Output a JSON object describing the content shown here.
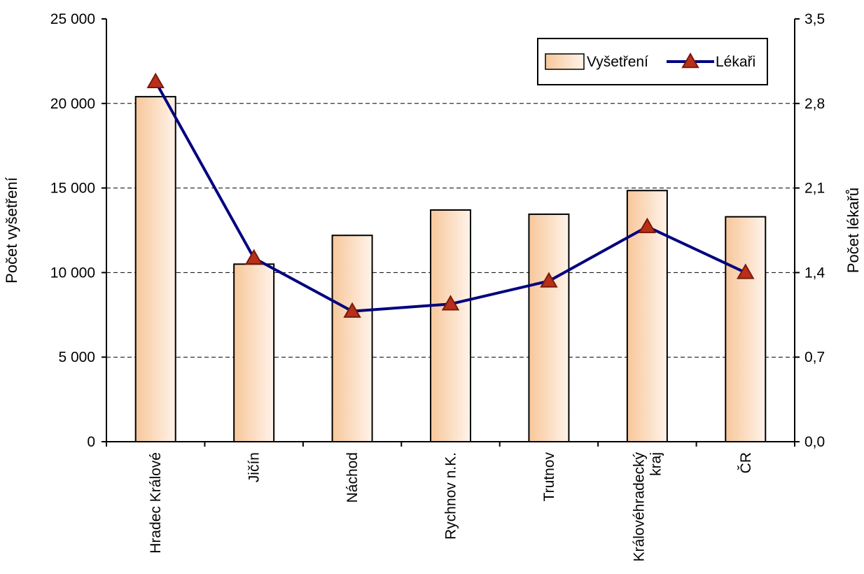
{
  "chart_data": {
    "type": "bar",
    "categories": [
      "Hradec Králové",
      "Jičín",
      "Náchod",
      "Rychnov n.K.",
      "Trutnov",
      "Královéhradecký kraj",
      "ČR"
    ],
    "category_lines": [
      [
        "Hradec Králové"
      ],
      [
        "Jičín"
      ],
      [
        "Náchod"
      ],
      [
        "Rychnov n.K."
      ],
      [
        "Trutnov"
      ],
      [
        "Královéhradecký",
        "kraj"
      ],
      [
        "ČR"
      ]
    ],
    "series": [
      {
        "name": "Vyšetření",
        "type": "bar",
        "axis": "left",
        "values": [
          20400,
          10500,
          12200,
          13700,
          13450,
          14850,
          13300
        ]
      },
      {
        "name": "Lékaři",
        "type": "line",
        "axis": "right",
        "values": [
          2.98,
          1.52,
          1.08,
          1.14,
          1.33,
          1.78,
          1.4
        ]
      }
    ],
    "ylabel": "Počet vyšetření",
    "ylabel_right": "Počet lékařů",
    "ylim": [
      0,
      25000
    ],
    "ylim_right": [
      0,
      3.5
    ],
    "yticks": [
      0,
      5000,
      10000,
      15000,
      20000,
      25000
    ],
    "ytick_labels": [
      "0",
      "5 000",
      "10 000",
      "15 000",
      "20 000",
      "25 000"
    ],
    "yticks_right": [
      0,
      0.7,
      1.4,
      2.1,
      2.8,
      3.5
    ],
    "ytick_labels_right": [
      "0,0",
      "0,7",
      "1,4",
      "2,1",
      "2,8",
      "3,5"
    ],
    "grid": true,
    "legend_position": "top-right",
    "colors": {
      "bar_fill_left": "#f7c79a",
      "bar_fill_right": "#fff3ea",
      "bar_stroke": "#000000",
      "line": "#00007f",
      "marker_fill": "#b8301a",
      "marker_stroke": "#7a1a0a"
    }
  }
}
